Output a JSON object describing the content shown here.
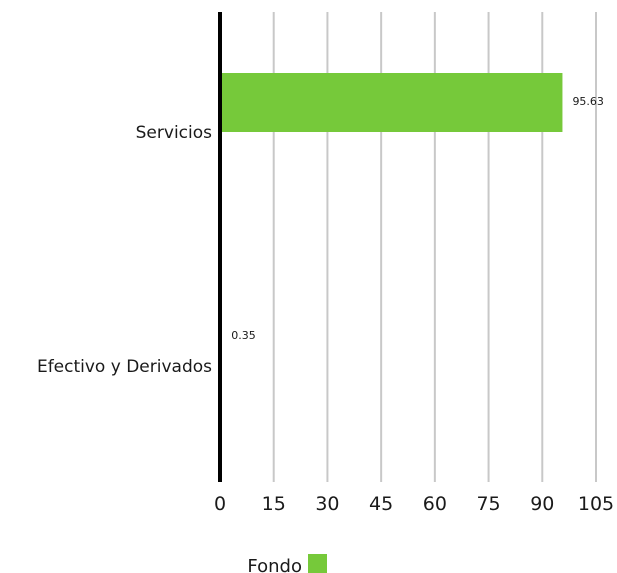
{
  "chart_data": {
    "type": "bar",
    "orientation": "horizontal",
    "categories": [
      "Servicios",
      "Efectivo y Derivados"
    ],
    "series": [
      {
        "name": "Fondo",
        "values": [
          95.63,
          0.35
        ],
        "color": "#76c93a"
      }
    ],
    "data_labels": [
      "95.63",
      "0.35"
    ],
    "x_ticks": [
      "0",
      "15",
      "30",
      "45",
      "60",
      "75",
      "90",
      "105"
    ],
    "xlim": [
      0,
      105
    ],
    "grid": true,
    "legend": "bottom",
    "title": "",
    "xlabel": "",
    "ylabel": ""
  }
}
